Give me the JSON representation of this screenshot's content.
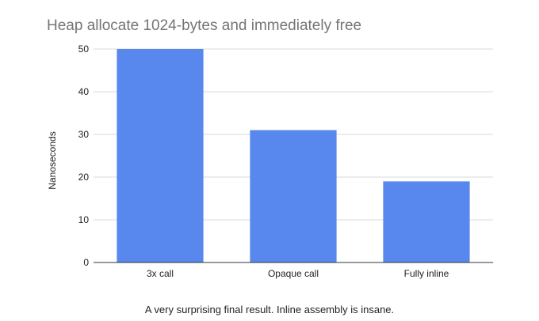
{
  "chart_data": {
    "type": "bar",
    "title": "Heap allocate 1024-bytes and immediately free",
    "ylabel": "Nanoseconds",
    "xlabel": "",
    "caption": "A very surprising final result. Inline assembly is insane.",
    "categories": [
      "3x call",
      "Opaque call",
      "Fully inline"
    ],
    "values": [
      50,
      31,
      19
    ],
    "ylim": [
      0,
      50
    ],
    "yticks": [
      0,
      10,
      20,
      30,
      40,
      50
    ],
    "grid": true,
    "bar_color": "#5887ed",
    "grid_color": "#d9d9d9",
    "axis_color": "#333333",
    "title_color": "#757575",
    "text_color": "#222222"
  }
}
